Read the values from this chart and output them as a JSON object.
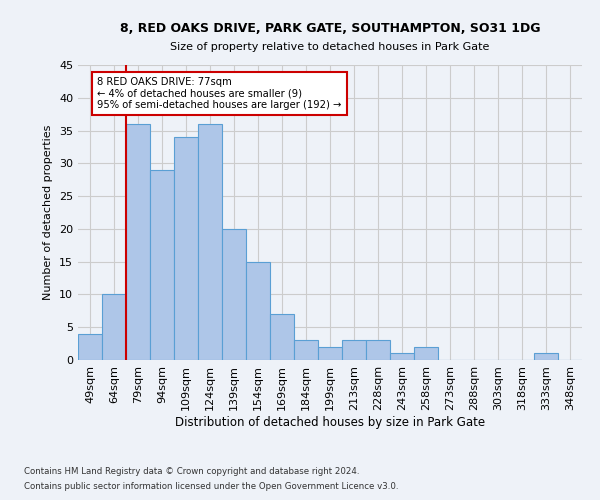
{
  "title1": "8, RED OAKS DRIVE, PARK GATE, SOUTHAMPTON, SO31 1DG",
  "title2": "Size of property relative to detached houses in Park Gate",
  "xlabel": "Distribution of detached houses by size in Park Gate",
  "ylabel": "Number of detached properties",
  "categories": [
    "49sqm",
    "64sqm",
    "79sqm",
    "94sqm",
    "109sqm",
    "124sqm",
    "139sqm",
    "154sqm",
    "169sqm",
    "184sqm",
    "199sqm",
    "213sqm",
    "228sqm",
    "243sqm",
    "258sqm",
    "273sqm",
    "288sqm",
    "303sqm",
    "318sqm",
    "333sqm",
    "348sqm"
  ],
  "values": [
    4,
    10,
    36,
    29,
    34,
    36,
    20,
    15,
    7,
    3,
    2,
    3,
    3,
    1,
    2,
    0,
    0,
    0,
    0,
    1,
    0
  ],
  "bar_color": "#aec6e8",
  "bar_edge_color": "#5a9fd4",
  "ylim": [
    0,
    45
  ],
  "yticks": [
    0,
    5,
    10,
    15,
    20,
    25,
    30,
    35,
    40,
    45
  ],
  "vline_x": 1.5,
  "vline_color": "#cc0000",
  "annotation_box_text": "8 RED OAKS DRIVE: 77sqm\n← 4% of detached houses are smaller (9)\n95% of semi-detached houses are larger (192) →",
  "footnote1": "Contains HM Land Registry data © Crown copyright and database right 2024.",
  "footnote2": "Contains public sector information licensed under the Open Government Licence v3.0.",
  "bg_color": "#eef2f8",
  "plot_bg_color": "#eef2f8",
  "grid_color": "#cccccc"
}
